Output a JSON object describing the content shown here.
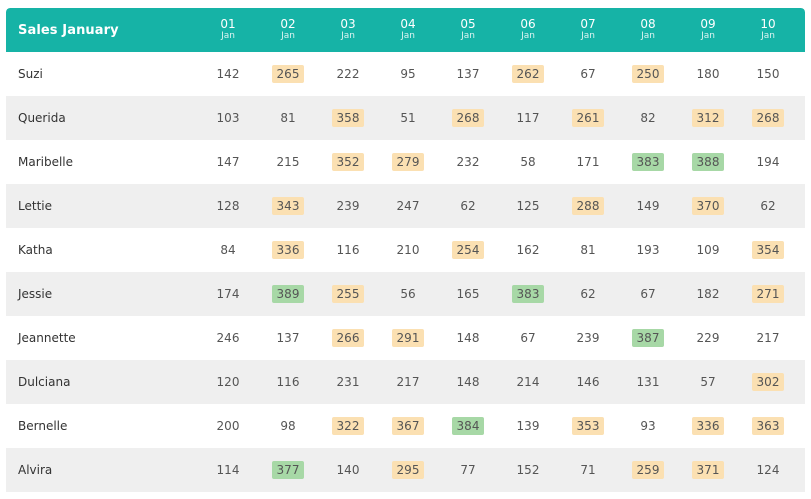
{
  "title": "Sales January",
  "colors": {
    "header": "#16b3a6",
    "highlight_mid": "#fbe0b2",
    "highlight_high": "#a7d8a6",
    "row_alt": "#efefef"
  },
  "days": [
    {
      "num": "01",
      "mon": "Jan"
    },
    {
      "num": "02",
      "mon": "Jan"
    },
    {
      "num": "03",
      "mon": "Jan"
    },
    {
      "num": "04",
      "mon": "Jan"
    },
    {
      "num": "05",
      "mon": "Jan"
    },
    {
      "num": "06",
      "mon": "Jan"
    },
    {
      "num": "07",
      "mon": "Jan"
    },
    {
      "num": "08",
      "mon": "Jan"
    },
    {
      "num": "09",
      "mon": "Jan"
    },
    {
      "num": "10",
      "mon": "Jan"
    }
  ],
  "rows": [
    {
      "name": "Suzi",
      "values": [
        142,
        265,
        222,
        95,
        137,
        262,
        67,
        250,
        180,
        150
      ]
    },
    {
      "name": "Querida",
      "values": [
        103,
        81,
        358,
        51,
        268,
        117,
        261,
        82,
        312,
        268
      ]
    },
    {
      "name": "Maribelle",
      "values": [
        147,
        215,
        352,
        279,
        232,
        58,
        171,
        383,
        388,
        194
      ]
    },
    {
      "name": "Lettie",
      "values": [
        128,
        343,
        239,
        247,
        62,
        125,
        288,
        149,
        370,
        62
      ]
    },
    {
      "name": "Katha",
      "values": [
        84,
        336,
        116,
        210,
        254,
        162,
        81,
        193,
        109,
        354
      ]
    },
    {
      "name": "Jessie",
      "values": [
        174,
        389,
        255,
        56,
        165,
        383,
        62,
        67,
        182,
        271
      ]
    },
    {
      "name": "Jeannette",
      "values": [
        246,
        137,
        266,
        291,
        148,
        67,
        239,
        387,
        229,
        217
      ]
    },
    {
      "name": "Dulciana",
      "values": [
        120,
        116,
        231,
        217,
        148,
        214,
        146,
        131,
        57,
        302
      ]
    },
    {
      "name": "Bernelle",
      "values": [
        200,
        98,
        322,
        367,
        384,
        139,
        353,
        93,
        336,
        363
      ]
    },
    {
      "name": "Alvira",
      "values": [
        114,
        377,
        140,
        295,
        77,
        152,
        71,
        259,
        371,
        124
      ]
    }
  ],
  "highlights": [
    [
      "",
      "mid",
      "",
      "",
      "",
      "mid",
      "",
      "mid",
      "",
      ""
    ],
    [
      "",
      "",
      "mid",
      "",
      "mid",
      "",
      "mid",
      "",
      "mid",
      "mid"
    ],
    [
      "",
      "",
      "mid",
      "mid",
      "",
      "",
      "",
      "high",
      "high",
      ""
    ],
    [
      "",
      "mid",
      "",
      "",
      "",
      "",
      "mid",
      "",
      "mid",
      ""
    ],
    [
      "",
      "mid",
      "",
      "",
      "mid",
      "",
      "",
      "",
      "",
      "mid"
    ],
    [
      "",
      "high",
      "mid",
      "",
      "",
      "high",
      "",
      "",
      "",
      "mid"
    ],
    [
      "",
      "",
      "mid",
      "mid",
      "",
      "",
      "",
      "high",
      "",
      ""
    ],
    [
      "",
      "",
      "",
      "",
      "",
      "",
      "",
      "",
      "",
      "mid"
    ],
    [
      "",
      "",
      "mid",
      "mid",
      "high",
      "",
      "mid",
      "",
      "mid",
      "mid"
    ],
    [
      "",
      "high",
      "",
      "mid",
      "",
      "",
      "",
      "mid",
      "mid",
      ""
    ]
  ]
}
